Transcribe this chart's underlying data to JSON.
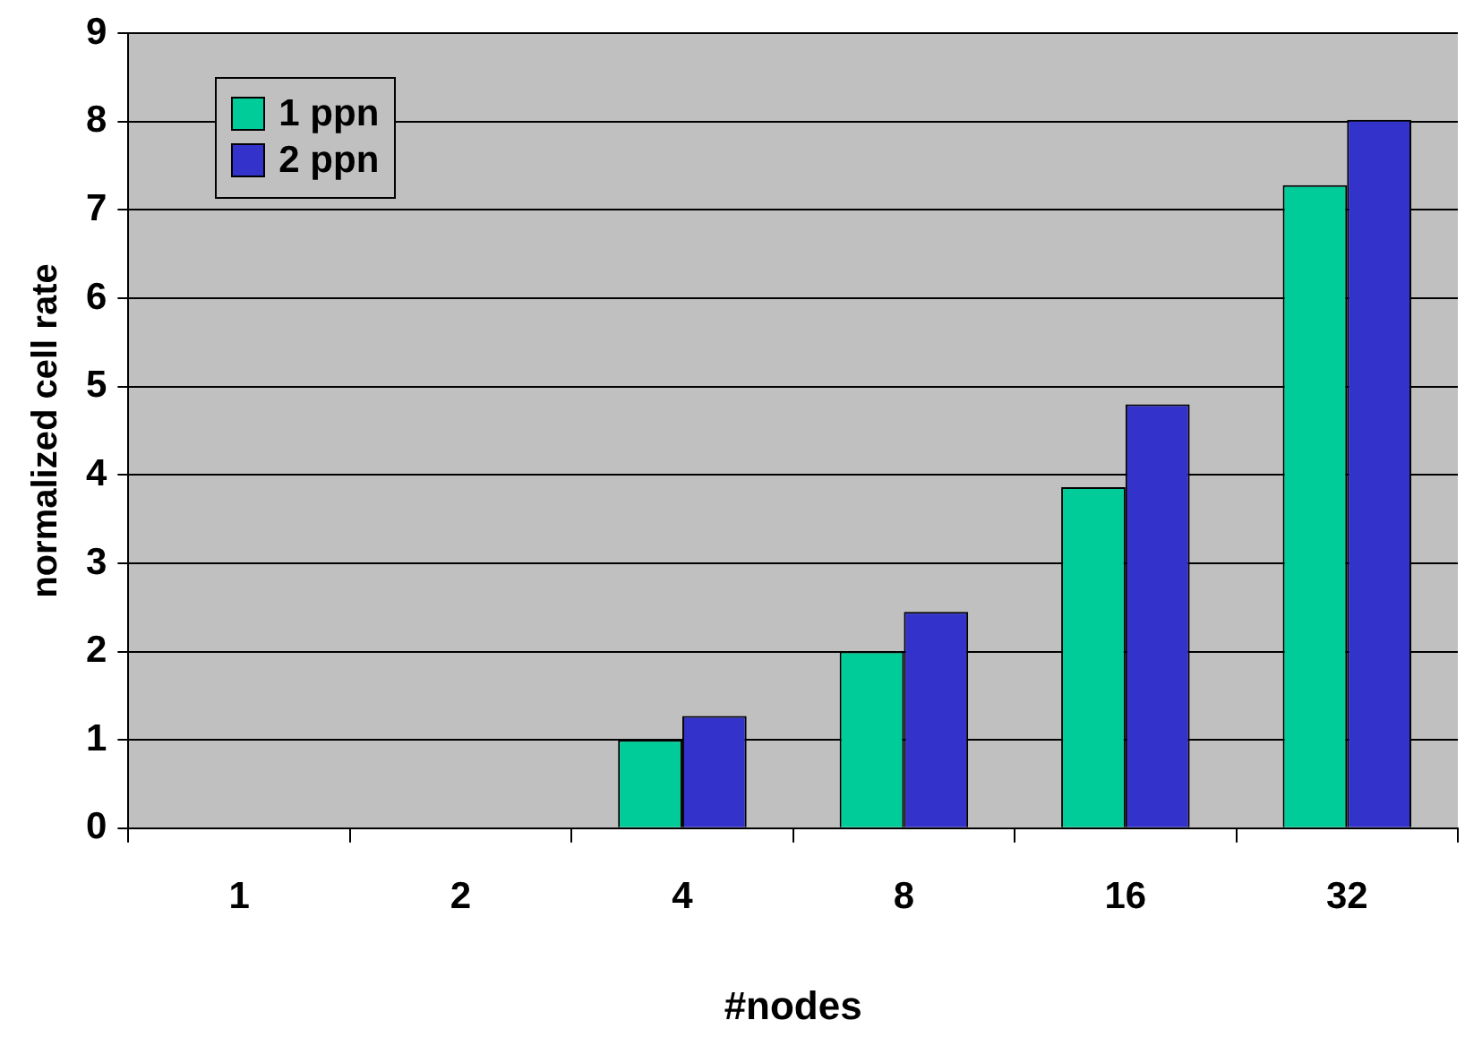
{
  "chart_data": {
    "type": "bar",
    "xlabel": "#nodes",
    "ylabel": "normalized cell rate",
    "categories": [
      "1",
      "2",
      "4",
      "8",
      "16",
      "32"
    ],
    "series": [
      {
        "name": "1 ppn",
        "color": "#00cc99",
        "values": [
          null,
          null,
          1.0,
          2.0,
          3.86,
          7.28
        ]
      },
      {
        "name": "2 ppn",
        "color": "#3333cc",
        "values": [
          null,
          null,
          1.27,
          2.45,
          4.8,
          8.02
        ]
      }
    ],
    "ylim": [
      0,
      9
    ],
    "yticks": [
      0,
      1,
      2,
      3,
      4,
      5,
      6,
      7,
      8,
      9
    ],
    "grid": "y",
    "legend": "top left"
  }
}
